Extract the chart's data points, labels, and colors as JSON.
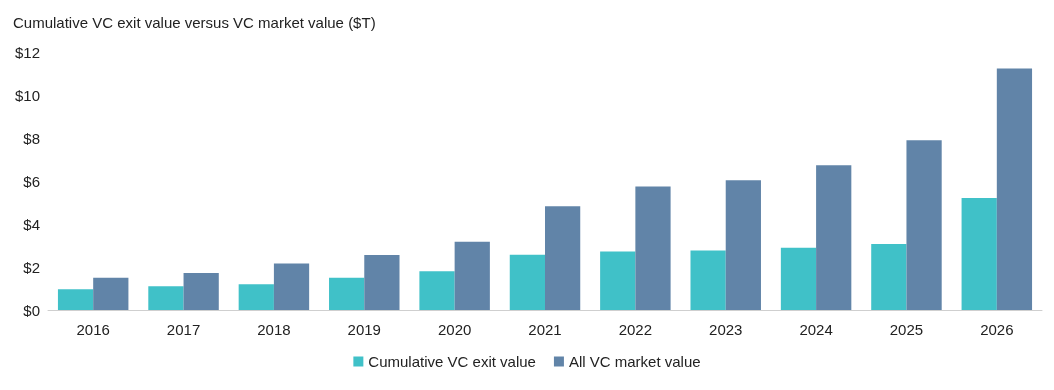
{
  "chart_data": {
    "type": "bar",
    "title": "Cumulative VC exit value versus VC market value ($T)",
    "categories": [
      "2016",
      "2017",
      "2018",
      "2019",
      "2020",
      "2021",
      "2022",
      "2023",
      "2024",
      "2025",
      "2026"
    ],
    "series": [
      {
        "name": "Cumulative VC exit value",
        "color": "#40c1c8",
        "values": [
          0.97,
          1.1,
          1.2,
          1.5,
          1.8,
          2.57,
          2.72,
          2.77,
          2.9,
          3.07,
          5.21
        ]
      },
      {
        "name": "All VC market value",
        "color": "#6184a8",
        "values": [
          1.5,
          1.72,
          2.16,
          2.56,
          3.17,
          4.83,
          5.74,
          6.03,
          6.73,
          7.9,
          11.23
        ]
      }
    ],
    "ylim": [
      0,
      12
    ],
    "yticks": [
      {
        "value": 0,
        "label": "$0"
      },
      {
        "value": 2,
        "label": "$2"
      },
      {
        "value": 4,
        "label": "$4"
      },
      {
        "value": 6,
        "label": "$6"
      },
      {
        "value": 8,
        "label": "$8"
      },
      {
        "value": 10,
        "label": "$10"
      },
      {
        "value": 12,
        "label": "$12"
      }
    ],
    "grid": false,
    "legend": "bottom"
  }
}
